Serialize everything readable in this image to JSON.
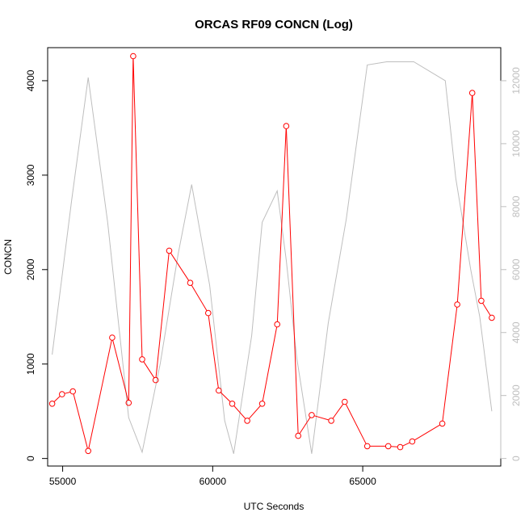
{
  "chart_data": {
    "type": "line",
    "title": "ORCAS RF09 CONCN (Log)",
    "xlabel": "UTC Seconds",
    "ylabel": "CONCN",
    "xlim": [
      54500,
      69600
    ],
    "ylim": [
      -80,
      4350
    ],
    "y2lim": [
      -240,
      13050
    ],
    "x_ticks": [
      55000,
      60000,
      65000
    ],
    "y_ticks": [
      0,
      1000,
      2000,
      3000,
      4000
    ],
    "y2_ticks": [
      0,
      2000,
      4000,
      6000,
      8000,
      10000,
      12000
    ],
    "grid": false,
    "legend": "none",
    "colors": {
      "primary": "#ff0000",
      "secondary": "#bebebe",
      "axis": "#000000"
    },
    "series": [
      {
        "axis": "left",
        "style": "line-with-circles",
        "color": "#ff0000",
        "x": [
          54650,
          54980,
          55340,
          55850,
          56650,
          57200,
          57350,
          57650,
          58100,
          58550,
          59250,
          59850,
          60200,
          60650,
          61150,
          61650,
          62150,
          62450,
          62850,
          63300,
          63950,
          64400,
          65150,
          65850,
          66250,
          66650,
          67650,
          68150,
          68650,
          68950,
          69300
        ],
        "y": [
          580,
          680,
          710,
          80,
          1280,
          590,
          4260,
          1050,
          830,
          2200,
          1860,
          1540,
          720,
          580,
          400,
          580,
          1420,
          3520,
          240,
          460,
          400,
          600,
          130,
          130,
          120,
          180,
          370,
          1630,
          3870,
          1670,
          1490
        ]
      },
      {
        "axis": "right",
        "style": "line",
        "color": "#bebebe",
        "x": [
          54650,
          55300,
          55850,
          56500,
          57200,
          57650,
          58250,
          58850,
          59300,
          59900,
          60400,
          60700,
          61300,
          61650,
          62150,
          62450,
          62800,
          63300,
          63850,
          64450,
          65150,
          65800,
          66350,
          66700,
          67750,
          68100,
          68600,
          68900,
          69300
        ],
        "y": [
          3300,
          8200,
          12100,
          7500,
          1300,
          200,
          3000,
          6500,
          8700,
          5500,
          1200,
          150,
          3900,
          7500,
          8500,
          6300,
          3200,
          150,
          4300,
          7600,
          12500,
          12600,
          12600,
          12600,
          12000,
          8900,
          6000,
          4500,
          1500
        ]
      }
    ]
  }
}
